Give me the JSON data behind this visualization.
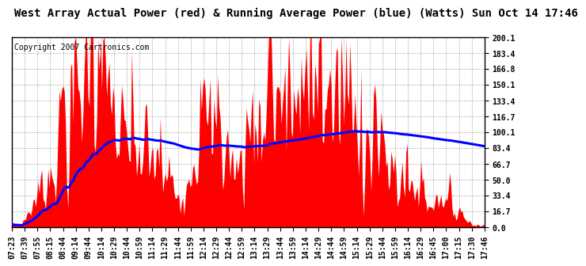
{
  "title": "West Array Actual Power (red) & Running Average Power (blue) (Watts) Sun Oct 14 17:46",
  "copyright": "Copyright 2007 Cartronics.com",
  "ylabel_right_values": [
    200.1,
    183.4,
    166.8,
    150.1,
    133.4,
    116.7,
    100.1,
    83.4,
    66.7,
    50.0,
    33.4,
    16.7,
    0.0
  ],
  "ylim": [
    0.0,
    200.1
  ],
  "bar_color": "#FF0000",
  "avg_color": "#0000FF",
  "bg_color": "#FFFFFF",
  "grid_color": "#999999",
  "title_fontsize": 10,
  "copyright_fontsize": 7,
  "tick_fontsize": 7,
  "x_tick_labels": [
    "07:23",
    "07:39",
    "07:55",
    "08:15",
    "08:44",
    "09:14",
    "09:44",
    "10:14",
    "10:29",
    "10:44",
    "10:59",
    "11:14",
    "11:29",
    "11:44",
    "11:59",
    "12:14",
    "12:29",
    "12:44",
    "12:59",
    "13:14",
    "13:29",
    "13:44",
    "13:59",
    "14:14",
    "14:29",
    "14:44",
    "14:59",
    "15:14",
    "15:29",
    "15:44",
    "15:59",
    "16:14",
    "16:29",
    "16:45",
    "17:00",
    "17:15",
    "17:30",
    "17:46"
  ]
}
